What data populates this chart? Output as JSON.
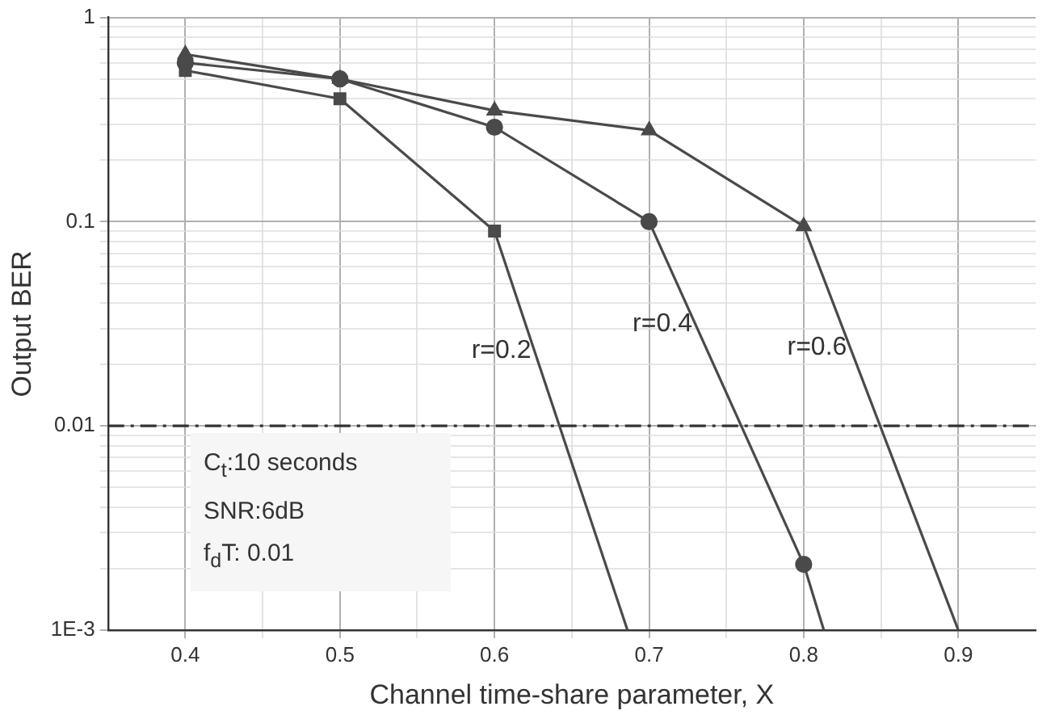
{
  "chart_data": {
    "type": "line",
    "xlabel": "Channel time-share parameter, X",
    "ylabel": "Output BER",
    "xlim": [
      0.35,
      0.95
    ],
    "xticks": [
      0.4,
      {
        "value": 0.45,
        "label": null
      },
      0.5,
      {
        "value": 0.55,
        "label": null
      },
      0.6,
      {
        "value": 0.65,
        "label": null
      },
      0.7,
      {
        "value": 0.75,
        "label": null
      },
      0.8,
      {
        "value": 0.85,
        "label": null
      },
      0.9
    ],
    "ylim": [
      0.001,
      1
    ],
    "yticks": [
      {
        "value": 0.001,
        "label": "1E-3"
      },
      {
        "value": 0.002,
        "label": null
      },
      {
        "value": 0.003,
        "label": null
      },
      {
        "value": 0.004,
        "label": null
      },
      {
        "value": 0.005,
        "label": null
      },
      {
        "value": 0.006,
        "label": null
      },
      {
        "value": 0.007,
        "label": null
      },
      {
        "value": 0.008,
        "label": null
      },
      {
        "value": 0.009,
        "label": null
      },
      0.01,
      {
        "value": 0.02,
        "label": null
      },
      {
        "value": 0.03,
        "label": null
      },
      {
        "value": 0.04,
        "label": null
      },
      {
        "value": 0.05,
        "label": null
      },
      {
        "value": 0.06,
        "label": null
      },
      {
        "value": 0.07,
        "label": null
      },
      {
        "value": 0.08,
        "label": null
      },
      {
        "value": 0.09,
        "label": null
      },
      0.1,
      {
        "value": 0.2,
        "label": null
      },
      {
        "value": 0.3,
        "label": null
      },
      {
        "value": 0.4,
        "label": null
      },
      {
        "value": 0.5,
        "label": null
      },
      {
        "value": 0.6,
        "label": null
      },
      {
        "value": 0.7,
        "label": null
      },
      {
        "value": 0.8,
        "label": null
      },
      {
        "value": 0.9,
        "label": null
      },
      1
    ],
    "log": "y",
    "grid": true,
    "legend": false,
    "line_style": "solid",
    "series": [
      {
        "name": "r=0.2",
        "color": "#4a4a4a",
        "marker": "square",
        "x": [
          0.4,
          0.5,
          0.6,
          0.686
        ],
        "values": [
          0.55,
          0.4,
          0.09,
          0.001
        ]
      },
      {
        "name": "r=0.4",
        "color": "#4a4a4a",
        "marker": "circle",
        "x": [
          0.4,
          0.5,
          0.6,
          0.7,
          0.8,
          0.813
        ],
        "values": [
          0.6,
          0.5,
          0.29,
          0.1,
          0.0021,
          0.001
        ]
      },
      {
        "name": "r=0.6",
        "color": "#4a4a4a",
        "marker": "triangle",
        "x": [
          0.4,
          0.5,
          0.6,
          0.7,
          0.8,
          0.9
        ],
        "values": [
          0.66,
          0.5,
          0.35,
          0.28,
          0.095,
          0.001
        ]
      }
    ],
    "ref_lines": [
      {
        "axis": "y",
        "value": 0.01,
        "label": null,
        "color": "#333333",
        "line_style": "dashdot"
      }
    ],
    "annotations": [
      "C$_{t}$:10 seconds",
      "SNR:6dB",
      "f$_{d}$T: 0.01"
    ]
  }
}
